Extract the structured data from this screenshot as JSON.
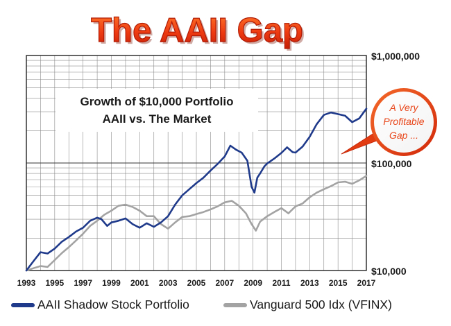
{
  "chart_data": {
    "type": "line",
    "title": "The AAII Gap",
    "subtitle_line1": "Growth of $10,000 Portfolio",
    "subtitle_line2": "AAII vs. The Market",
    "callout": [
      "A Very",
      "Profitable",
      "Gap ..."
    ],
    "y_scale": "log",
    "ylim": [
      10000,
      1000000
    ],
    "y_ticks": [
      {
        "value": 1000000,
        "label": "$1,000,000"
      },
      {
        "value": 100000,
        "label": "$100,000"
      },
      {
        "value": 10000,
        "label": "$10,000"
      }
    ],
    "xlim": [
      1993,
      2017
    ],
    "x_ticks": [
      "1993",
      "1995",
      "1997",
      "1999",
      "2001",
      "2003",
      "2005",
      "2007",
      "2009",
      "2011",
      "2013",
      "2015",
      "2017"
    ],
    "grid": true,
    "series": [
      {
        "name": "AAII Shadow Stock Portfolio",
        "color": "#1f3a8a",
        "x": [
          1993.0,
          1993.5,
          1994.0,
          1994.5,
          1995.0,
          1995.5,
          1996.0,
          1996.5,
          1997.0,
          1997.5,
          1998.0,
          1998.3,
          1998.7,
          1999.0,
          1999.5,
          2000.0,
          2000.5,
          2001.0,
          2001.5,
          2002.0,
          2002.5,
          2003.0,
          2003.5,
          2004.0,
          2004.5,
          2005.0,
          2005.5,
          2006.0,
          2006.5,
          2007.0,
          2007.4,
          2007.8,
          2008.2,
          2008.6,
          2008.9,
          2009.1,
          2009.3,
          2009.5,
          2009.8,
          2010.0,
          2010.5,
          2011.0,
          2011.4,
          2011.8,
          2012.0,
          2012.5,
          2013.0,
          2013.5,
          2014.0,
          2014.5,
          2015.0,
          2015.5,
          2016.0,
          2016.5,
          2017.0
        ],
        "values": [
          10000,
          12200,
          14800,
          14400,
          16000,
          18500,
          20500,
          23000,
          25000,
          29000,
          31000,
          30000,
          26000,
          28000,
          29000,
          30500,
          27000,
          25000,
          27500,
          25500,
          28000,
          32000,
          41000,
          50000,
          57000,
          65000,
          73000,
          85000,
          98000,
          115000,
          145000,
          133000,
          125000,
          105000,
          60000,
          53000,
          73000,
          80000,
          93000,
          99000,
          110000,
          124000,
          140000,
          126000,
          125000,
          142000,
          175000,
          230000,
          280000,
          295000,
          285000,
          275000,
          240000,
          260000,
          320000
        ]
      },
      {
        "name": "Vanguard 500 Idx (VFINX)",
        "color": "#a3a3a3",
        "x": [
          1993.0,
          1993.5,
          1994.0,
          1994.5,
          1995.0,
          1995.5,
          1996.0,
          1996.5,
          1997.0,
          1997.5,
          1998.0,
          1998.5,
          1999.0,
          1999.5,
          2000.0,
          2000.5,
          2001.0,
          2001.5,
          2002.0,
          2002.5,
          2003.0,
          2003.5,
          2004.0,
          2004.5,
          2005.0,
          2005.5,
          2006.0,
          2006.5,
          2007.0,
          2007.5,
          2008.0,
          2008.5,
          2008.9,
          2009.2,
          2009.5,
          2010.0,
          2010.5,
          2011.0,
          2011.5,
          2012.0,
          2012.5,
          2013.0,
          2013.5,
          2014.0,
          2014.5,
          2015.0,
          2015.5,
          2016.0,
          2016.5,
          2017.0
        ],
        "values": [
          10000,
          10500,
          11000,
          10800,
          12500,
          14500,
          16500,
          19000,
          22000,
          26000,
          29000,
          33000,
          36000,
          40000,
          41000,
          39000,
          36000,
          32000,
          32000,
          27000,
          24500,
          28000,
          31500,
          32000,
          33500,
          35000,
          37000,
          39500,
          43000,
          44500,
          40000,
          34000,
          27000,
          23500,
          28500,
          32000,
          35000,
          38000,
          34000,
          39500,
          42000,
          48000,
          53000,
          57000,
          61000,
          66000,
          67000,
          64000,
          69000,
          76000
        ]
      }
    ],
    "legend_position": "bottom"
  }
}
